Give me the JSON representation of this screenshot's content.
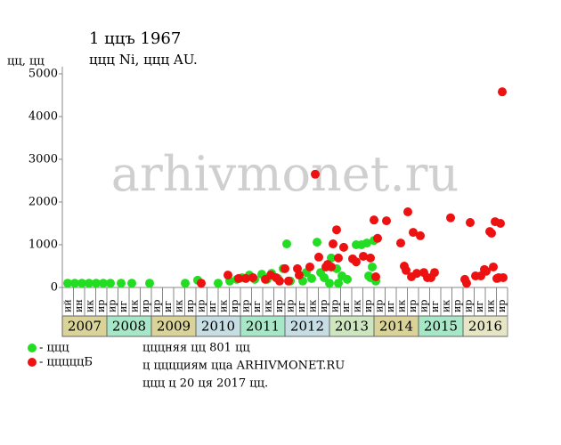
{
  "chart_data": {
    "type": "scatter",
    "title": "1 ццъ 1967",
    "subtitle": "ццц Ni, ццц AU.",
    "y_label": "цц, цц",
    "watermark": "arhivmonet.ru",
    "notes": [
      "цццняя цц 801 цц",
      "ц цццциям цца ARHIVMONET.RU",
      "ццц ц 20 ця 2017 цц."
    ],
    "xlim": [
      2007,
      2017
    ],
    "ylim": [
      0,
      5000
    ],
    "yticks": [
      0,
      1000,
      2000,
      3000,
      4000,
      5000
    ],
    "year_ticks": [
      2007,
      2008,
      2009,
      2010,
      2011,
      2012,
      2013,
      2014,
      2015,
      2016
    ],
    "quarter_labels": [
      "ий",
      "ин",
      "ик",
      "ир",
      "ир",
      "иг",
      "ик",
      "ир",
      "ир",
      "иг",
      "ик",
      "ир",
      "ир",
      "иг",
      "ик",
      "ир",
      "ир",
      "иг",
      "ик",
      "ир",
      "ир",
      "иг",
      "ик",
      "ир",
      "ир",
      "иг",
      "ик",
      "ир",
      "ир",
      "иг",
      "ик",
      "ир",
      "ир",
      "иг",
      "ик",
      "ир",
      "ир",
      "иг",
      "ик",
      "ир"
    ],
    "legend_position": "bottom-left",
    "series": [
      {
        "name": "- ццц",
        "color": "#22dd22",
        "x": [
          2007.12,
          2007.28,
          2007.44,
          2007.6,
          2007.76,
          2007.92,
          2008.08,
          2008.32,
          2008.56,
          2008.96,
          2009.76,
          2010.04,
          2010.5,
          2010.76,
          2010.92,
          2011.04,
          2011.2,
          2011.32,
          2011.48,
          2011.6,
          2011.7,
          2011.84,
          2011.96,
          2012.04,
          2012.12,
          2012.4,
          2012.48,
          2012.6,
          2012.72,
          2012.8,
          2012.88,
          2013.0,
          2013.04,
          2013.16,
          2013.2,
          2013.28,
          2013.4,
          2013.6,
          2013.72,
          2013.84,
          2013.88,
          2013.92,
          2013.96,
          2014.0,
          2014.04
        ],
        "values": [
          100,
          100,
          100,
          100,
          100,
          100,
          100,
          100,
          100,
          100,
          100,
          170,
          100,
          150,
          190,
          230,
          290,
          190,
          310,
          190,
          330,
          210,
          440,
          1020,
          150,
          150,
          350,
          210,
          1060,
          350,
          230,
          100,
          690,
          440,
          100,
          270,
          190,
          1000,
          1000,
          1040,
          270,
          230,
          480,
          1100,
          150
        ]
      },
      {
        "name": "- цццццБ",
        "color": "#ee1111",
        "x": [
          2010.12,
          2010.72,
          2010.96,
          2011.12,
          2011.28,
          2011.56,
          2011.68,
          2011.8,
          2011.88,
          2012.0,
          2012.08,
          2012.28,
          2012.32,
          2012.56,
          2012.68,
          2012.76,
          2012.92,
          2012.96,
          2013.04,
          2013.08,
          2013.16,
          2013.2,
          2013.32,
          2013.52,
          2013.6,
          2013.76,
          2013.92,
          2014.0,
          2014.04,
          2014.08,
          2014.28,
          2014.6,
          2014.68,
          2014.72,
          2014.76,
          2014.84,
          2014.88,
          2014.96,
          2015.04,
          2015.12,
          2015.2,
          2015.28,
          2015.36,
          2015.72,
          2016.04,
          2016.08,
          2016.16,
          2016.28,
          2016.4,
          2016.48,
          2016.52,
          2016.6,
          2016.64,
          2016.68,
          2016.72,
          2016.76,
          2016.8,
          2016.84,
          2016.88,
          2016.9
        ],
        "values": [
          100,
          290,
          210,
          210,
          230,
          190,
          290,
          230,
          150,
          440,
          150,
          440,
          290,
          480,
          2650,
          710,
          480,
          540,
          480,
          1020,
          1350,
          690,
          940,
          670,
          600,
          730,
          690,
          1580,
          250,
          1150,
          1560,
          1040,
          500,
          400,
          1770,
          250,
          1290,
          330,
          1210,
          350,
          230,
          230,
          350,
          1630,
          190,
          100,
          1520,
          270,
          270,
          420,
          380,
          1310,
          1270,
          480,
          1540,
          210,
          230,
          1500,
          4580,
          230
        ]
      }
    ]
  }
}
